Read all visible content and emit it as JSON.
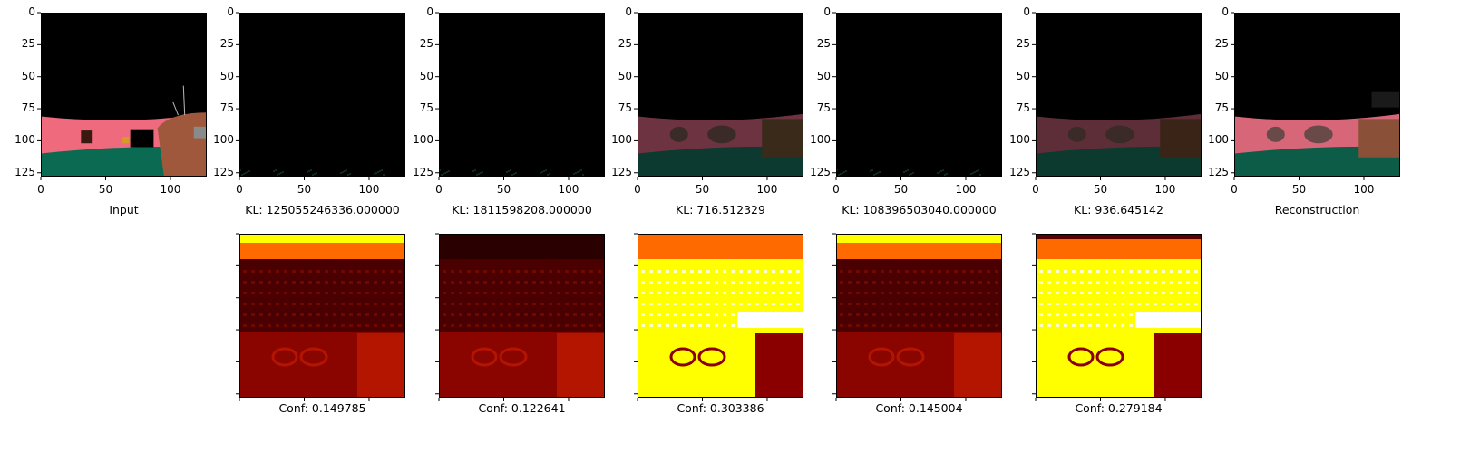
{
  "figure": {
    "x_ticks": [
      "0",
      "50",
      "100"
    ],
    "y_ticks": [
      "0",
      "25",
      "50",
      "75",
      "100",
      "125"
    ],
    "top_row": [
      {
        "caption": "Input",
        "image": "input"
      },
      {
        "caption": "KL: 125055246336.000000",
        "image": "dark"
      },
      {
        "caption": "KL: 1811598208.000000",
        "image": "dark"
      },
      {
        "caption": "KL: 716.512329",
        "image": "dim"
      },
      {
        "caption": "KL: 108396503040.000000",
        "image": "dark"
      },
      {
        "caption": "KL: 936.645142",
        "image": "dim2"
      },
      {
        "caption": "Reconstruction",
        "image": "recon"
      }
    ],
    "bottom_row": [
      {
        "caption": "Conf: 0.149785",
        "variant": "low"
      },
      {
        "caption": "Conf: 0.122641",
        "variant": "lowest"
      },
      {
        "caption": "Conf: 0.303386",
        "variant": "high"
      },
      {
        "caption": "Conf: 0.145004",
        "variant": "low"
      },
      {
        "caption": "Conf: 0.279184",
        "variant": "high2"
      }
    ],
    "colors": {
      "sky": "#000000",
      "wall": "#f06a7e",
      "floor": "#0b6b52",
      "object": "#a0583c",
      "heat_dark": "#4a0000",
      "heat_red": "#b31500",
      "heat_orange": "#ff6a00",
      "heat_yellow": "#ffff00",
      "heat_white": "#ffffff"
    }
  }
}
